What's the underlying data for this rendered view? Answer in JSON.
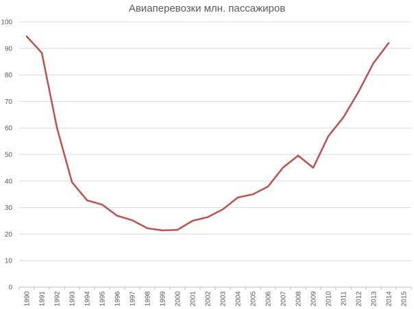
{
  "chart_data": {
    "type": "line",
    "title": "Авиаперевозки млн. пассажиров",
    "xlabel": "",
    "ylabel": "",
    "ylim": [
      0,
      100
    ],
    "yticks": [
      0,
      10,
      20,
      30,
      40,
      50,
      60,
      70,
      80,
      90,
      100
    ],
    "categories": [
      "1990",
      "1991",
      "1992",
      "1993",
      "1994",
      "1995",
      "1996",
      "1997",
      "1998",
      "1999",
      "2000",
      "2001",
      "2002",
      "2003",
      "2004",
      "2005",
      "2006",
      "2007",
      "2008",
      "2009",
      "2010",
      "2011",
      "2012",
      "2013",
      "2014",
      "2015"
    ],
    "series": [
      {
        "color": "#c0504d",
        "values": [
          94.5,
          88.3,
          60.2,
          39.6,
          32.7,
          31.1,
          26.9,
          25.2,
          22.2,
          21.4,
          21.6,
          25.0,
          26.4,
          29.3,
          33.8,
          35.0,
          37.9,
          45.1,
          49.6,
          45.0,
          56.9,
          64.0,
          73.6,
          84.5,
          92.0,
          null
        ]
      }
    ],
    "grid": true,
    "legend": "none",
    "colors": {
      "gridline": "#d9d9d9",
      "axis": "#bfbfbf",
      "text": "#595959"
    }
  }
}
